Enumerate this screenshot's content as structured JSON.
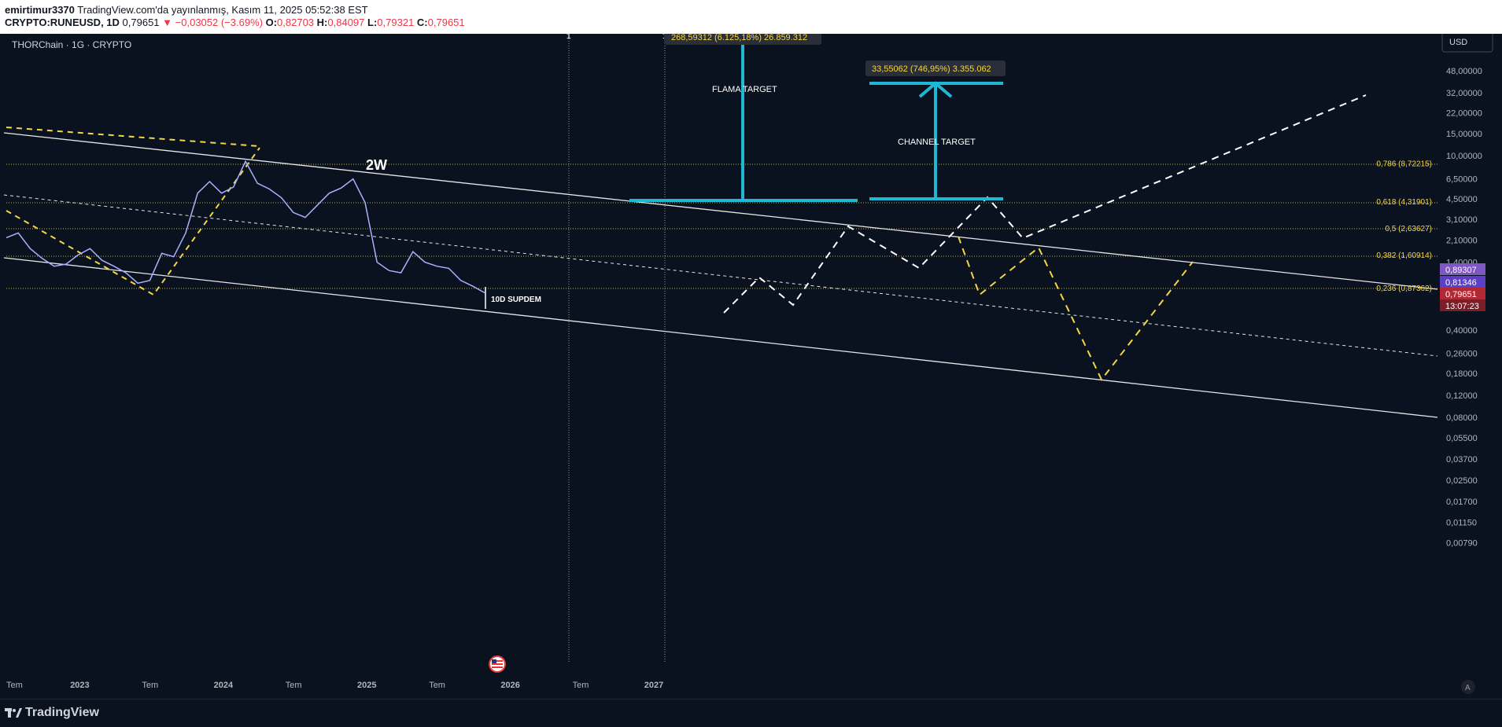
{
  "header": {
    "author": "emirtimur3370",
    "published_text": "TradingView.com'da yayınlanmış, Kasım 11, 2025 05:52:38 EST",
    "symbol": "CRYPTO:RUNEUSD, 1D",
    "last": "0,79651",
    "change": "▼ −0,03052 (−3.69%)",
    "o_label": "O:",
    "o_value": "0,82703",
    "h_label": "H:",
    "h_value": "0,84097",
    "l_label": "L:",
    "l_value": "0,79321",
    "c_label": "C:",
    "c_value": "0,79651"
  },
  "chart_meta": {
    "legend": "THORChain · 1G · CRYPTO",
    "currency_button": "USD",
    "auto_button": "A",
    "marker_1": "1",
    "marker_2": "1",
    "brand": "TradingView"
  },
  "chart_data": {
    "type": "line",
    "title": "",
    "y_scale": "log",
    "x_tick_labels": [
      "Tem",
      "2023",
      "Tem",
      "2024",
      "Tem",
      "2025",
      "Tem",
      "2026",
      "Tem",
      "2027"
    ],
    "y_tick_labels": [
      "48,00000",
      "32,00000",
      "22,00000",
      "15,00000",
      "10,00000",
      "6,50000",
      "4,50000",
      "3,10000",
      "2,10000",
      "1,40000",
      "0,40000",
      "0,26000",
      "0,18000",
      "0,12000",
      "0,08000",
      "0,05500",
      "0,03700",
      "0,02500",
      "0,01700",
      "0,01150",
      "0,00790"
    ],
    "price_badges": [
      {
        "label": "0,89307",
        "color": "#7e57c2"
      },
      {
        "label": "0,81346",
        "color": "#5c3fc4"
      },
      {
        "label": "0,79651",
        "color": "#b22833"
      },
      {
        "label": "13:07:23",
        "color": "#7a1f27"
      }
    ],
    "fib_levels": [
      {
        "label": "0,786 (8,72215)",
        "value": 8.72215
      },
      {
        "label": "0,618 (4,31901)",
        "value": 4.31901
      },
      {
        "label": "0,5 (2,63627)",
        "value": 2.63627
      },
      {
        "label": "0,382 (1,60914)",
        "value": 1.60914
      },
      {
        "label": "0,236 (0,87362)",
        "value": 0.87362
      }
    ],
    "annotations": {
      "flama_target": "FLAMA TARGET",
      "channel_target": "CHANNEL TARGET",
      "flama_measure": "268,59312 (6.125,18%) 26.859.312",
      "channel_measure": "33,55062 (746,95%) 3.355.062",
      "wave_label": "2W",
      "support_label": "10D SUPDEM"
    },
    "price_series": [
      {
        "t": "2022-07",
        "v": 2.2
      },
      {
        "t": "2022-08",
        "v": 2.4
      },
      {
        "t": "2022-09",
        "v": 1.8
      },
      {
        "t": "2022-10",
        "v": 1.5
      },
      {
        "t": "2022-11",
        "v": 1.3
      },
      {
        "t": "2022-12",
        "v": 1.35
      },
      {
        "t": "2023-01",
        "v": 1.6
      },
      {
        "t": "2023-02",
        "v": 1.8
      },
      {
        "t": "2023-03",
        "v": 1.45
      },
      {
        "t": "2023-04",
        "v": 1.3
      },
      {
        "t": "2023-05",
        "v": 1.15
      },
      {
        "t": "2023-06",
        "v": 0.95
      },
      {
        "t": "2023-07",
        "v": 1.0
      },
      {
        "t": "2023-08",
        "v": 1.65
      },
      {
        "t": "2023-09",
        "v": 1.55
      },
      {
        "t": "2023-10",
        "v": 2.4
      },
      {
        "t": "2023-11",
        "v": 5.0
      },
      {
        "t": "2023-12",
        "v": 6.2
      },
      {
        "t": "2024-01",
        "v": 5.0
      },
      {
        "t": "2024-02",
        "v": 5.6
      },
      {
        "t": "2024-03",
        "v": 9.0
      },
      {
        "t": "2024-04",
        "v": 6.0
      },
      {
        "t": "2024-05",
        "v": 5.4
      },
      {
        "t": "2024-06",
        "v": 4.6
      },
      {
        "t": "2024-07",
        "v": 3.5
      },
      {
        "t": "2024-08",
        "v": 3.2
      },
      {
        "t": "2024-09",
        "v": 4.0
      },
      {
        "t": "2024-10",
        "v": 5.0
      },
      {
        "t": "2024-11",
        "v": 5.5
      },
      {
        "t": "2024-12",
        "v": 6.5
      },
      {
        "t": "2025-01",
        "v": 4.2
      },
      {
        "t": "2025-02",
        "v": 1.4
      },
      {
        "t": "2025-03",
        "v": 1.2
      },
      {
        "t": "2025-04",
        "v": 1.15
      },
      {
        "t": "2025-05",
        "v": 1.7
      },
      {
        "t": "2025-06",
        "v": 1.4
      },
      {
        "t": "2025-07",
        "v": 1.3
      },
      {
        "t": "2025-08",
        "v": 1.25
      },
      {
        "t": "2025-09",
        "v": 1.0
      },
      {
        "t": "2025-10",
        "v": 0.9
      },
      {
        "t": "2025-11",
        "v": 0.79651
      }
    ]
  }
}
